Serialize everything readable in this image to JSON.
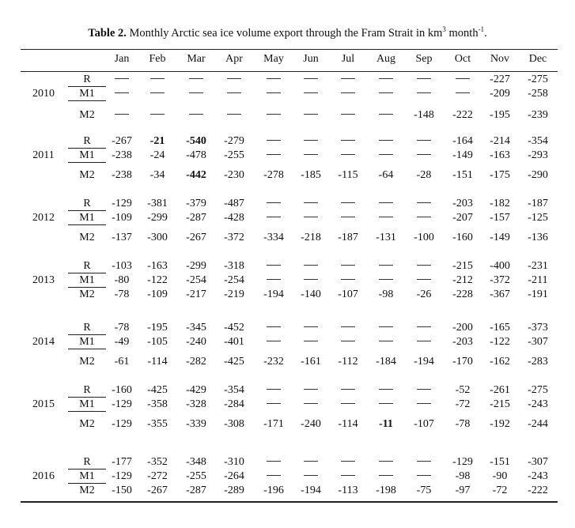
{
  "caption": {
    "label": "Table 2.",
    "text": " Monthly Arctic sea ice volume export through the Fram Strait in km",
    "exp1": "3",
    "mid": " month",
    "exp2": "-1",
    "end": "."
  },
  "months": [
    "Jan",
    "Feb",
    "Mar",
    "Apr",
    "May",
    "Jun",
    "Jul",
    "Aug",
    "Sep",
    "Oct",
    "Nov",
    "Dec"
  ],
  "dash_symbol": "—",
  "years": [
    {
      "year": "2010",
      "rows": [
        {
          "label": "R",
          "values": [
            "—",
            "—",
            "—",
            "—",
            "—",
            "—",
            "—",
            "—",
            "—",
            "—",
            "-227",
            "-275"
          ]
        },
        {
          "label": "M1",
          "values": [
            "—",
            "—",
            "—",
            "—",
            "—",
            "—",
            "—",
            "—",
            "—",
            "—",
            "-209",
            "-258"
          ]
        },
        {
          "label": "M2",
          "values": [
            "—",
            "—",
            "—",
            "—",
            "—",
            "—",
            "—",
            "—",
            "-148",
            "-222",
            "-195",
            "-239"
          ]
        }
      ]
    },
    {
      "year": "2011",
      "rows": [
        {
          "label": "R",
          "values": [
            "-267",
            "-21",
            "-540",
            "-279",
            "—",
            "—",
            "—",
            "—",
            "—",
            "-164",
            "-214",
            "-354"
          ],
          "bold": [
            1,
            2
          ]
        },
        {
          "label": "M1",
          "values": [
            "-238",
            "-24",
            "-478",
            "-255",
            "—",
            "—",
            "—",
            "—",
            "—",
            "-149",
            "-163",
            "-293"
          ]
        },
        {
          "label": "M2",
          "values": [
            "-238",
            "-34",
            "-442",
            "-230",
            "-278",
            "-185",
            "-115",
            "-64",
            "-28",
            "-151",
            "-175",
            "-290"
          ],
          "bold": [
            2
          ]
        }
      ]
    },
    {
      "year": "2012",
      "rows": [
        {
          "label": "R",
          "values": [
            "-129",
            "-381",
            "-379",
            "-487",
            "—",
            "—",
            "—",
            "—",
            "—",
            "-203",
            "-182",
            "-187"
          ]
        },
        {
          "label": "M1",
          "values": [
            "-109",
            "-299",
            "-287",
            "-428",
            "—",
            "—",
            "—",
            "—",
            "—",
            "-207",
            "-157",
            "-125"
          ]
        },
        {
          "label": "M2",
          "values": [
            "-137",
            "-300",
            "-267",
            "-372",
            "-334",
            "-218",
            "-187",
            "-131",
            "-100",
            "-160",
            "-149",
            "-136"
          ]
        }
      ]
    },
    {
      "year": "2013",
      "rows": [
        {
          "label": "R",
          "values": [
            "-103",
            "-163",
            "-299",
            "-318",
            "—",
            "—",
            "—",
            "—",
            "—",
            "-215",
            "-400",
            "-231"
          ]
        },
        {
          "label": "M1",
          "values": [
            "-80",
            "-122",
            "-254",
            "-254",
            "—",
            "—",
            "—",
            "—",
            "—",
            "-212",
            "-372",
            "-211"
          ]
        },
        {
          "label": "M2",
          "values": [
            "-78",
            "-109",
            "-217",
            "-219",
            "-194",
            "-140",
            "-107",
            "-98",
            "-26",
            "-228",
            "-367",
            "-191"
          ]
        }
      ]
    },
    {
      "year": "2014",
      "rows": [
        {
          "label": "R",
          "values": [
            "-78",
            "-195",
            "-345",
            "-452",
            "—",
            "—",
            "—",
            "—",
            "—",
            "-200",
            "-165",
            "-373"
          ]
        },
        {
          "label": "M1",
          "values": [
            "-49",
            "-105",
            "-240",
            "-401",
            "—",
            "—",
            "—",
            "—",
            "—",
            "-203",
            "-122",
            "-307"
          ]
        },
        {
          "label": "M2",
          "values": [
            "-61",
            "-114",
            "-282",
            "-425",
            "-232",
            "-161",
            "-112",
            "-184",
            "-194",
            "-170",
            "-162",
            "-283"
          ]
        }
      ]
    },
    {
      "year": "2015",
      "rows": [
        {
          "label": "R",
          "values": [
            "-160",
            "-425",
            "-429",
            "-354",
            "—",
            "—",
            "—",
            "—",
            "—",
            "-52",
            "-261",
            "-275"
          ]
        },
        {
          "label": "M1",
          "values": [
            "-129",
            "-358",
            "-328",
            "-284",
            "—",
            "—",
            "—",
            "—",
            "—",
            "-72",
            "-215",
            "-243"
          ]
        },
        {
          "label": "M2",
          "values": [
            "-129",
            "-355",
            "-339",
            "-308",
            "-171",
            "-240",
            "-114",
            "-11",
            "-107",
            "-78",
            "-192",
            "-244"
          ],
          "bold": [
            7
          ]
        }
      ]
    },
    {
      "year": "2016",
      "rows": [
        {
          "label": "R",
          "values": [
            "-177",
            "-352",
            "-348",
            "-310",
            "—",
            "—",
            "—",
            "—",
            "—",
            "-129",
            "-151",
            "-307"
          ]
        },
        {
          "label": "M1",
          "values": [
            "-129",
            "-272",
            "-255",
            "-264",
            "—",
            "—",
            "—",
            "—",
            "—",
            "-98",
            "-90",
            "-243"
          ]
        },
        {
          "label": "M2",
          "values": [
            "-150",
            "-267",
            "-287",
            "-289",
            "-196",
            "-194",
            "-113",
            "-198",
            "-75",
            "-97",
            "-72",
            "-222"
          ]
        }
      ]
    }
  ]
}
